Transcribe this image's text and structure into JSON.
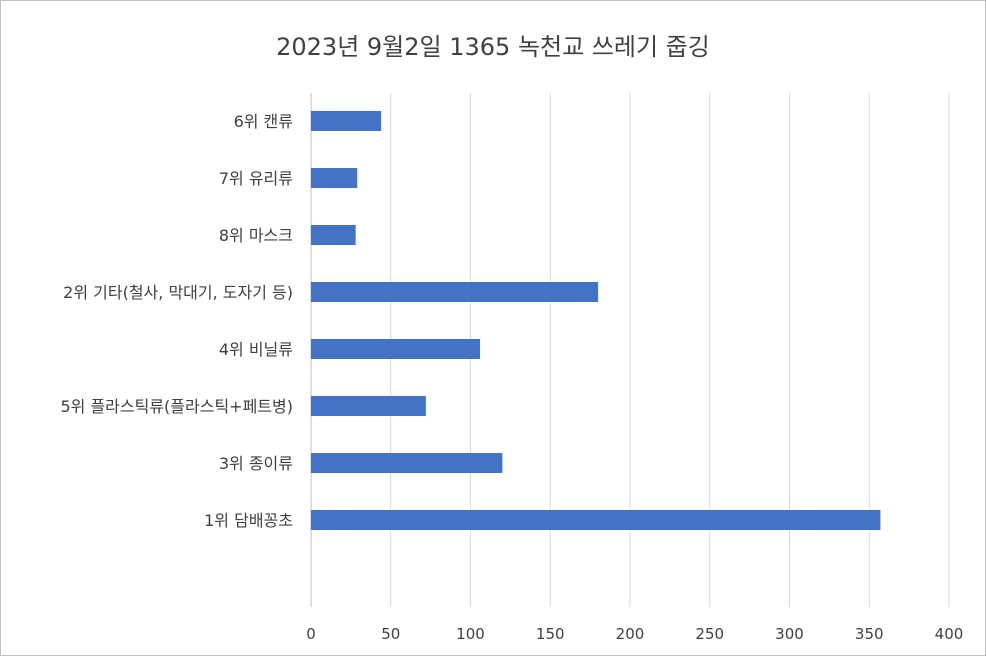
{
  "chart_data": {
    "type": "bar",
    "orientation": "horizontal",
    "title": "2023년 9월2일 1365 녹천교 쓰레기 줍깅",
    "xlabel": "",
    "ylabel": "",
    "categories": [
      "6위 캔류",
      "7위 유리류",
      "8위 마스크",
      "2위 기타(철사, 막대기, 도자기 등)",
      "4위 비닐류",
      "5위 플라스틱류(플라스틱+페트병)",
      "3위 종이류",
      "1위 담배꽁초"
    ],
    "values": [
      44,
      29,
      28,
      180,
      106,
      72,
      120,
      357
    ],
    "xlim": [
      0,
      400
    ],
    "x_ticks": [
      0,
      50,
      100,
      150,
      200,
      250,
      300,
      350,
      400
    ],
    "grid": "vertical",
    "legend": "none",
    "bar_color": "#4472c4"
  }
}
